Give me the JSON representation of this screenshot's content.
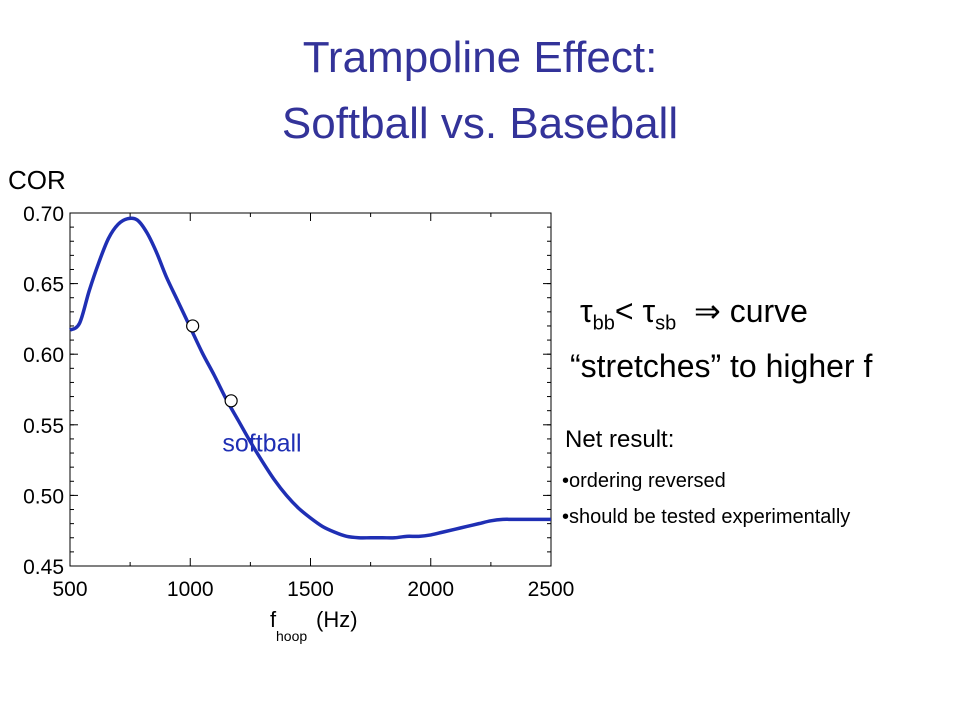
{
  "title": {
    "line1": "Trampoline Effect:",
    "line2": "Softball vs. Baseball"
  },
  "annotations": {
    "tau": "τ",
    "sub_bb": "bb",
    "sub_sb": "sb",
    "less_than": "<",
    "implies": "⇒",
    "curve": "curve",
    "stretches_line": "“stretches” to higher f",
    "net_result": "Net result:",
    "bullets": [
      "ordering reversed",
      "should be tested experimentally"
    ]
  },
  "chart_data": {
    "type": "line",
    "ylabel": "COR",
    "xlabel_main": "f",
    "xlabel_sub": "hoop",
    "xlabel_unit": "(Hz)",
    "xlim": [
      500,
      2500
    ],
    "ylim": [
      0.45,
      0.7
    ],
    "x_ticks": [
      500,
      1000,
      1500,
      2000,
      2500
    ],
    "y_ticks": [
      0.45,
      0.5,
      0.55,
      0.6,
      0.65,
      0.7
    ],
    "y_tick_labels": [
      "0.45",
      "0.50",
      "0.55",
      "0.60",
      "0.65",
      "0.70"
    ],
    "series": [
      {
        "name": "softball",
        "color": "#1f2fb4",
        "x": [
          500,
          540,
          580,
          620,
          660,
          700,
          740,
          780,
          820,
          860,
          900,
          950,
          1000,
          1050,
          1100,
          1150,
          1200,
          1250,
          1300,
          1350,
          1400,
          1450,
          1500,
          1550,
          1600,
          1650,
          1700,
          1750,
          1800,
          1850,
          1900,
          1950,
          2000,
          2050,
          2100,
          2150,
          2200,
          2250,
          2300,
          2350,
          2400,
          2450,
          2500
        ],
        "y": [
          0.617,
          0.622,
          0.645,
          0.665,
          0.682,
          0.692,
          0.696,
          0.695,
          0.686,
          0.672,
          0.655,
          0.637,
          0.619,
          0.601,
          0.585,
          0.568,
          0.553,
          0.538,
          0.524,
          0.511,
          0.5,
          0.491,
          0.484,
          0.478,
          0.474,
          0.471,
          0.47,
          0.47,
          0.47,
          0.47,
          0.471,
          0.471,
          0.472,
          0.474,
          0.476,
          0.478,
          0.48,
          0.482,
          0.483,
          0.483,
          0.483,
          0.483,
          0.483
        ]
      }
    ],
    "markers": [
      {
        "x": 1010,
        "y": 0.62
      },
      {
        "x": 1170,
        "y": 0.567
      }
    ],
    "series_label": {
      "text": "softball",
      "x": 1300,
      "y": 0.531
    }
  }
}
